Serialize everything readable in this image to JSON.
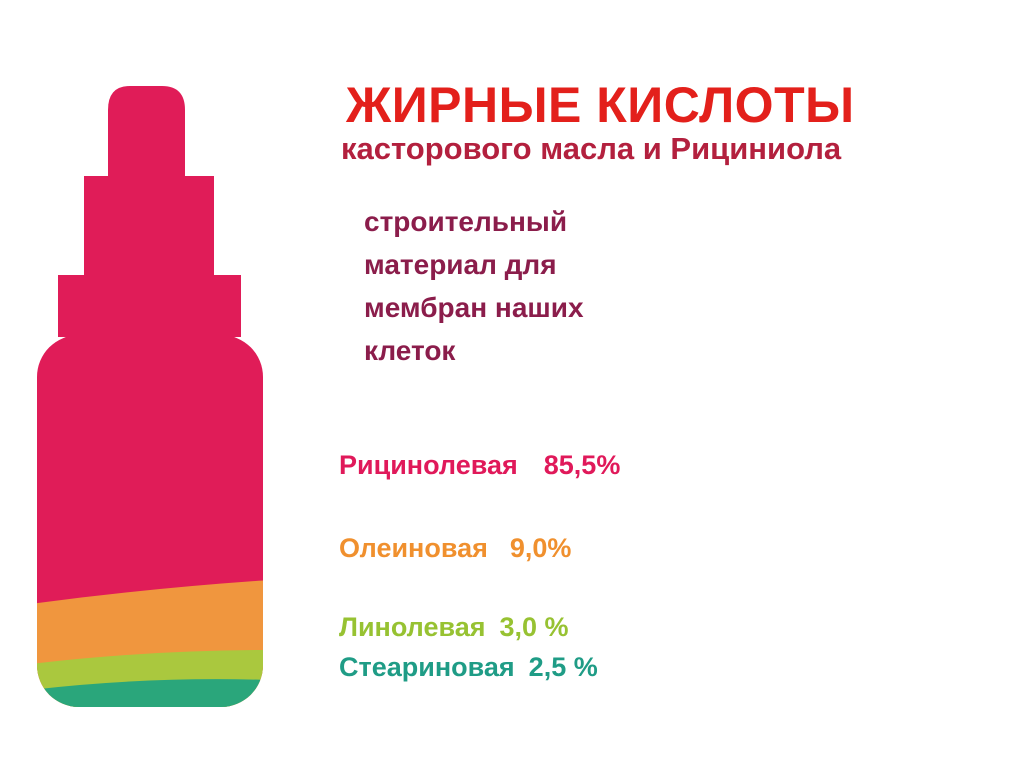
{
  "title": "ЖИРНЫЕ КИСЛОТЫ",
  "subtitle": "касторового масла и Рициниола",
  "description": [
    "строительный",
    "материал для",
    "мембран наших",
    "клеток"
  ],
  "items": [
    {
      "name": "Рицинолевая",
      "value": "85,5%"
    },
    {
      "name": "Олеиновая",
      "value": "9,0%"
    },
    {
      "name": "Линолевая",
      "value": "3,0 %"
    },
    {
      "name": "Стеариновая",
      "value": "2,5 %"
    }
  ]
}
